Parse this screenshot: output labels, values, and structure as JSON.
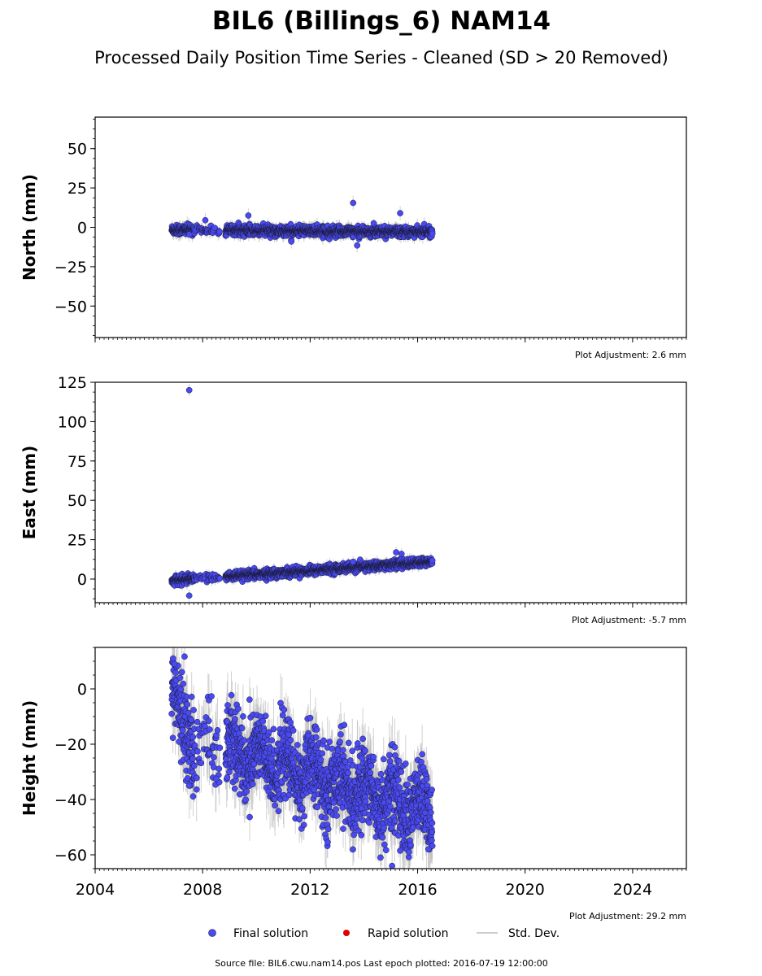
{
  "title": "BIL6 (Billings_6) NAM14",
  "subtitle": "Processed Daily Position Time Series - Cleaned (SD > 20 Removed)",
  "footer": "Source file: BIL6.cwu.nam14.pos  Last epoch plotted: 2016-07-19 12:00:00",
  "legend": {
    "final": "Final solution",
    "rapid": "Rapid solution",
    "std": "Std. Dev."
  },
  "colors": {
    "final_fill": "#4a4af2",
    "final_edge": "#1a1a3a",
    "rapid": "#e00000",
    "std": "#bdbdbd"
  },
  "chart_data": [
    {
      "type": "scatter",
      "ylabel": "North (mm)",
      "adjustment": "Plot Adjustment: 2.6 mm",
      "xlim": [
        2004,
        2026
      ],
      "ylim": [
        -70,
        70
      ],
      "yticks": [
        -50,
        -25,
        0,
        25,
        50
      ],
      "ytick_labels": [
        "−50",
        "−25",
        "0",
        "25",
        "50"
      ],
      "xticks": [
        2004,
        2008,
        2012,
        2016,
        2020,
        2024
      ],
      "xtick_labels": [],
      "span": [
        2006.85,
        2016.55
      ],
      "gap": [
        2008.65,
        2008.85
      ],
      "trend": [
        -1.5,
        -3.0
      ],
      "noise": 1.5,
      "sd": 3.0,
      "outliers": [
        {
          "x": 2009.7,
          "y": 7.5
        },
        {
          "x": 2013.6,
          "y": 15.5
        },
        {
          "x": 2013.75,
          "y": -11.5
        },
        {
          "x": 2015.35,
          "y": 9.0
        },
        {
          "x": 2008.1,
          "y": 4.5
        },
        {
          "x": 2007.5,
          "y": -4.5
        },
        {
          "x": 2011.3,
          "y": -9.0
        }
      ]
    },
    {
      "type": "scatter",
      "ylabel": "East (mm)",
      "adjustment": "Plot Adjustment: -5.7 mm",
      "xlim": [
        2004,
        2026
      ],
      "ylim": [
        -15,
        125
      ],
      "yticks": [
        0,
        25,
        50,
        75,
        100,
        125
      ],
      "ytick_labels": [
        "0",
        "25",
        "50",
        "75",
        "100",
        "125"
      ],
      "xticks": [
        2004,
        2008,
        2012,
        2016,
        2020,
        2024
      ],
      "xtick_labels": [],
      "span": [
        2006.85,
        2016.55
      ],
      "gap": [
        2008.65,
        2008.85
      ],
      "trend": [
        -1.0,
        11.0
      ],
      "noise": 1.3,
      "sd": 2.5,
      "outliers": [
        {
          "x": 2007.5,
          "y": 120.0
        },
        {
          "x": 2007.5,
          "y": -10.5
        },
        {
          "x": 2015.2,
          "y": 17.0
        },
        {
          "x": 2015.4,
          "y": 16.0
        },
        {
          "x": 2013.6,
          "y": 11.0
        }
      ]
    },
    {
      "type": "scatter",
      "ylabel": "Height (mm)",
      "adjustment": "Plot Adjustment: 29.2 mm",
      "xlim": [
        2004,
        2026
      ],
      "ylim": [
        -65,
        15
      ],
      "yticks": [
        -60,
        -40,
        -20,
        0
      ],
      "ytick_labels": [
        "−60",
        "−40",
        "−20",
        "0"
      ],
      "xticks": [
        2004,
        2008,
        2012,
        2016,
        2020,
        2024
      ],
      "xtick_labels": [
        "2004",
        "2008",
        "2012",
        "2016",
        "2020",
        "2024"
      ],
      "span": [
        2006.85,
        2016.55
      ],
      "gap": [
        2008.65,
        2008.85
      ],
      "trend": [
        -15.0,
        -45.0
      ],
      "noise": 7.0,
      "sd": 8.0,
      "outliers": [
        {
          "x": 2006.9,
          "y": 11.0
        },
        {
          "x": 2006.95,
          "y": 9.0
        },
        {
          "x": 2015.05,
          "y": -64.0
        },
        {
          "x": 2015.35,
          "y": -58.5
        },
        {
          "x": 2016.4,
          "y": -58.0
        },
        {
          "x": 2007.5,
          "y": -35.0
        },
        {
          "x": 2008.5,
          "y": -32.5
        }
      ]
    }
  ]
}
